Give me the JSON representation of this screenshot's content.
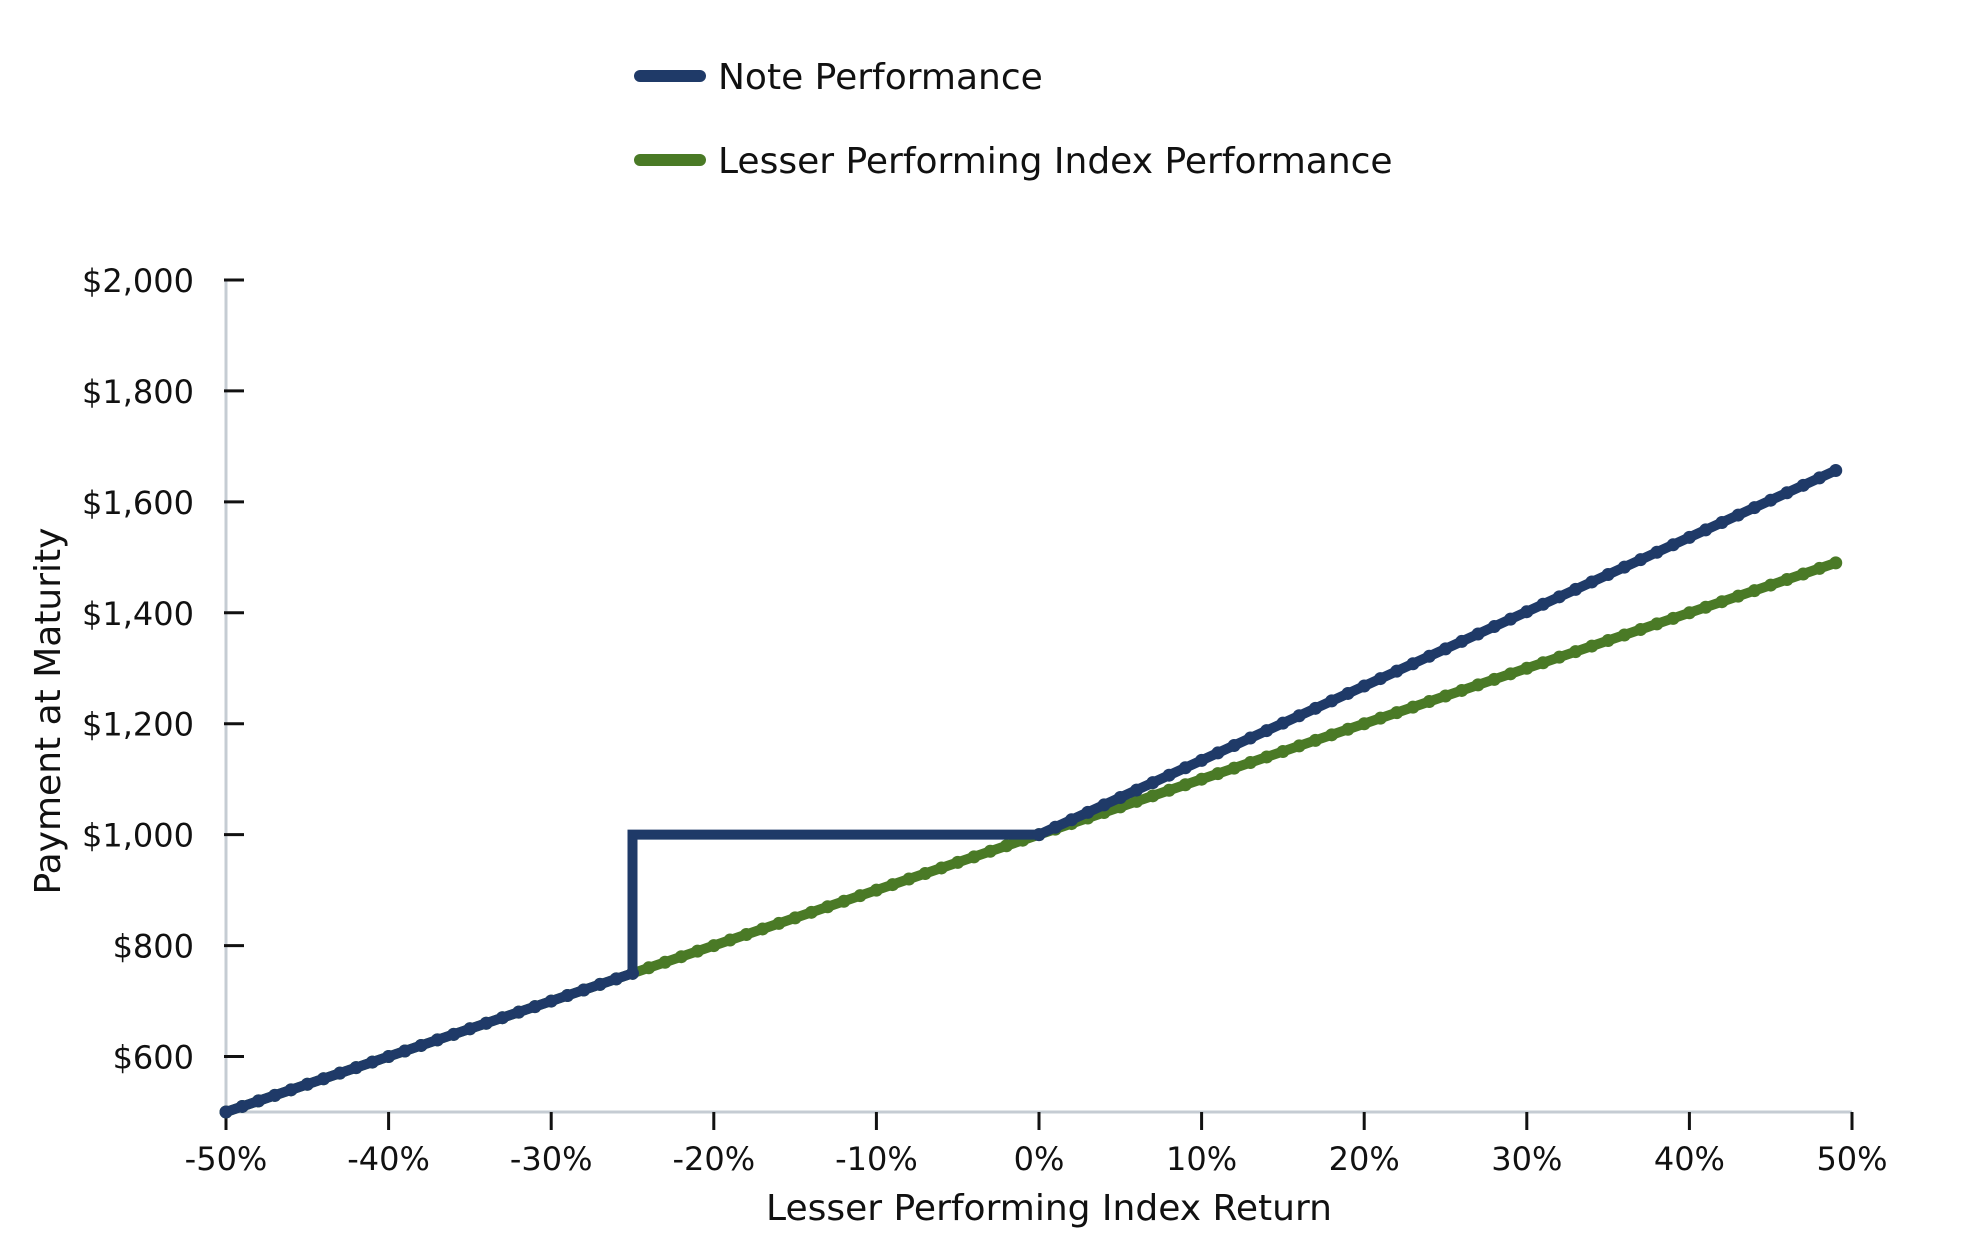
{
  "chart_data": {
    "type": "line",
    "xlabel": "Lesser Performing Index Return",
    "ylabel": "Payment at Maturity",
    "xlim": [
      -50,
      50
    ],
    "ylim": [
      500,
      2000
    ],
    "x_ticks": [
      -50,
      -40,
      -30,
      -20,
      -10,
      0,
      10,
      20,
      30,
      40,
      50
    ],
    "x_tick_labels": [
      "-50%",
      "-40%",
      "-30%",
      "-20%",
      "-10%",
      "0%",
      "10%",
      "20%",
      "30%",
      "40%",
      "50%"
    ],
    "y_ticks": [
      600,
      800,
      1000,
      1200,
      1400,
      1600,
      1800,
      2000
    ],
    "y_tick_labels": [
      "$600",
      "$800",
      "$1,000",
      "$1,200",
      "$1,400",
      "$1,600",
      "$1,800",
      "$2,000"
    ],
    "legend_position": "top-center",
    "grid": false,
    "series": [
      {
        "name": "Note Performance",
        "color": "#1f3a68",
        "points": [
          [
            -50,
            500
          ],
          [
            -25,
            750
          ],
          [
            -25,
            1000
          ],
          [
            0,
            1000
          ],
          [
            49,
            1656.6
          ]
        ]
      },
      {
        "name": "Lesser Performing Index Performance",
        "color": "#4a7a26",
        "points": [
          [
            -50,
            500
          ],
          [
            49,
            1490
          ]
        ]
      }
    ]
  }
}
